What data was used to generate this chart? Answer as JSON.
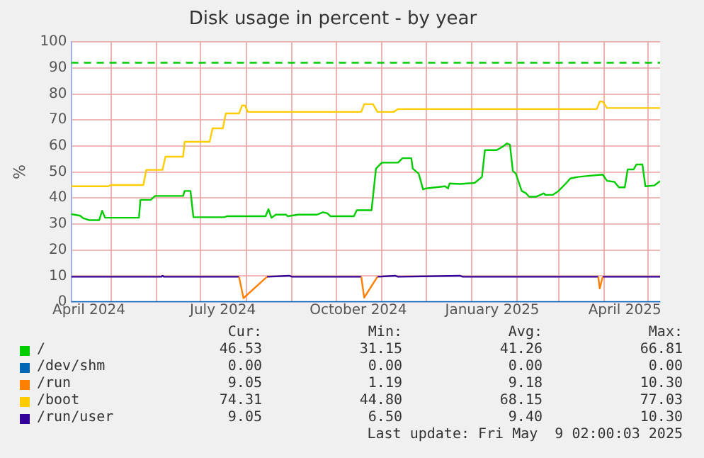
{
  "chart_data": {
    "type": "line",
    "title": "Disk usage in percent - by year",
    "ylabel": "%",
    "xlim": [
      "2024-04-04",
      "2025-05-09"
    ],
    "xticks": [
      {
        "value": "2024-05-01",
        "label": null
      },
      {
        "value": "2024-06-01",
        "label": null
      },
      {
        "value": "2024-07-01",
        "label": null
      },
      {
        "value": "2024-08-01",
        "label": null
      },
      {
        "value": "2024-09-01",
        "label": null
      },
      {
        "value": "2024-10-01",
        "label": null
      },
      {
        "value": "2024-11-01",
        "label": null
      },
      {
        "value": "2024-12-01",
        "label": null
      },
      {
        "value": "2025-01-01",
        "label": null
      },
      {
        "value": "2025-02-01",
        "label": null
      },
      {
        "value": "2025-03-01",
        "label": null
      },
      {
        "value": "2025-04-01",
        "label": null
      },
      {
        "value": "2025-05-01",
        "label": null
      },
      {
        "value": "2024-04-16",
        "label": "April 2024"
      },
      {
        "value": "2024-07-16",
        "label": "July 2024"
      },
      {
        "value": "2024-10-16",
        "label": "October 2024"
      },
      {
        "value": "2025-01-15",
        "label": "January 2025"
      },
      {
        "value": "2025-04-15",
        "label": "April 2025"
      }
    ],
    "ylim": [
      0,
      100
    ],
    "yticks": [
      0,
      10,
      20,
      30,
      40,
      50,
      60,
      70,
      80,
      90,
      100
    ],
    "grid": true,
    "legend": "bottom",
    "marker": "none",
    "line_style": "solid",
    "ref_lines": [
      {
        "axis": "y",
        "value": 92,
        "label": null,
        "color": "#00cc00",
        "line_style": "dashed"
      }
    ],
    "series": [
      {
        "name": "/",
        "color": "#00cc00",
        "x": [
          "2024-04-04",
          "2024-04-10",
          "2024-04-12",
          "2024-04-16",
          "2024-04-23",
          "2024-04-25",
          "2024-04-27",
          "2024-05-20",
          "2024-05-21",
          "2024-05-28",
          "2024-05-31",
          "2024-06-19",
          "2024-06-20",
          "2024-06-24",
          "2024-06-26",
          "2024-07-17",
          "2024-07-19",
          "2024-08-14",
          "2024-08-16",
          "2024-08-18",
          "2024-08-21",
          "2024-08-28",
          "2024-08-29",
          "2024-09-05",
          "2024-09-18",
          "2024-09-22",
          "2024-09-25",
          "2024-09-27",
          "2024-10-13",
          "2024-10-15",
          "2024-10-25",
          "2024-10-28",
          "2024-11-01",
          "2024-11-12",
          "2024-11-15",
          "2024-11-21",
          "2024-11-22",
          "2024-11-26",
          "2024-11-29",
          "2024-12-01",
          "2024-12-14",
          "2024-12-16",
          "2024-12-17",
          "2024-12-24",
          "2025-01-03",
          "2025-01-08",
          "2025-01-10",
          "2025-01-18",
          "2025-01-22",
          "2025-01-25",
          "2025-01-27",
          "2025-01-29",
          "2025-01-31",
          "2025-02-04",
          "2025-02-07",
          "2025-02-09",
          "2025-02-14",
          "2025-02-19",
          "2025-02-20",
          "2025-02-25",
          "2025-03-01",
          "2025-03-06",
          "2025-03-09",
          "2025-03-14",
          "2025-03-21",
          "2025-03-31",
          "2025-04-03",
          "2025-04-08",
          "2025-04-11",
          "2025-04-15",
          "2025-04-17",
          "2025-04-21",
          "2025-04-23",
          "2025-04-27",
          "2025-04-29",
          "2025-05-05",
          "2025-05-09"
        ],
        "values": [
          33.8,
          33.2,
          32.3,
          31.5,
          31.5,
          35.1,
          32.4,
          32.4,
          39.3,
          39.3,
          40.8,
          40.8,
          42.7,
          42.7,
          32.6,
          32.6,
          33,
          33,
          35.7,
          32.4,
          33.6,
          33.6,
          33,
          33.6,
          33.6,
          34.5,
          34.1,
          33,
          33,
          35.3,
          35.3,
          51.3,
          53.6,
          53.6,
          55.3,
          55.3,
          51.3,
          49.4,
          43.3,
          43.7,
          44.5,
          43.7,
          45.6,
          45.4,
          45.8,
          48.1,
          58.4,
          58.4,
          59.7,
          61,
          60.5,
          50.4,
          49.4,
          42.7,
          41.8,
          40.5,
          40.5,
          41.8,
          41.2,
          41.2,
          42.7,
          45.6,
          47.5,
          48.1,
          48.5,
          49,
          46.6,
          46.2,
          44.1,
          44.1,
          51,
          51,
          52.9,
          52.9,
          44.5,
          44.8,
          46.5
        ]
      },
      {
        "name": "/dev/shm",
        "color": "#0066b3",
        "x": [
          "2024-04-04",
          "2025-05-09"
        ],
        "values": [
          0,
          0
        ]
      },
      {
        "name": "/run",
        "color": "#ff8000",
        "x": [
          "2024-07-27",
          "2024-07-30",
          "2024-08-15",
          "2024-09-01",
          "2024-10-18",
          "2024-10-20",
          "2024-10-29",
          "2024-12-01",
          "2025-03-28",
          "2025-03-29",
          "2025-03-31"
        ],
        "values": [
          9.7,
          1.5,
          9.7,
          null,
          9.7,
          1.7,
          9.7,
          null,
          9.7,
          5.2,
          9.7
        ]
      },
      {
        "name": "/boot",
        "color": "#ffcc00",
        "x": [
          "2024-04-04",
          "2024-04-29",
          "2024-05-01",
          "2024-05-23",
          "2024-05-25",
          "2024-06-05",
          "2024-06-07",
          "2024-06-19",
          "2024-06-20",
          "2024-07-07",
          "2024-07-09",
          "2024-07-16",
          "2024-07-18",
          "2024-07-27",
          "2024-07-29",
          "2024-07-31",
          "2024-08-02",
          "2024-10-18",
          "2024-10-20",
          "2024-10-26",
          "2024-10-29",
          "2024-11-09",
          "2024-11-12",
          "2025-03-27",
          "2025-03-29",
          "2025-03-31",
          "2025-04-03",
          "2025-05-09"
        ],
        "values": [
          44.5,
          44.5,
          45,
          45,
          50.8,
          50.8,
          55.9,
          55.9,
          61.6,
          61.6,
          66.8,
          66.8,
          72.5,
          72.5,
          75.6,
          75.6,
          73.1,
          73.1,
          76.1,
          76.1,
          73.1,
          73.1,
          74.2,
          74.2,
          77.1,
          77.1,
          74.6,
          74.6
        ]
      },
      {
        "name": "/run/user",
        "color": "#330099",
        "x": [
          "2024-04-04",
          "2024-06-04",
          "2024-06-05",
          "2024-06-06",
          "2024-07-27",
          "2024-07-28",
          "2024-08-15",
          "2024-08-30",
          "2024-09-01",
          "2024-10-18",
          "2024-10-19",
          "2024-10-29",
          "2024-11-10",
          "2024-11-12",
          "2024-12-24",
          "2024-12-26",
          "2025-03-28",
          "2025-03-29",
          "2025-03-31",
          "2025-05-09"
        ],
        "values": [
          9.7,
          9.7,
          10.1,
          9.7,
          9.7,
          null,
          9.7,
          10.1,
          9.7,
          9.7,
          null,
          9.7,
          10.1,
          9.7,
          10.1,
          9.7,
          9.7,
          null,
          9.7,
          9.7
        ]
      }
    ],
    "annotations": [
      "Cur:",
      "Min:",
      "Avg:",
      "Max:",
      "46.53",
      "31.15",
      "41.26",
      "66.81",
      "0.00",
      "0.00",
      "0.00",
      "0.00",
      "9.05",
      "1.19",
      "9.18",
      "10.30",
      "74.31",
      "44.80",
      "68.15",
      "77.03",
      "9.05",
      "6.50",
      "9.40",
      "10.30",
      "Last update: Fri May  9 02:00:03 2025"
    ]
  }
}
